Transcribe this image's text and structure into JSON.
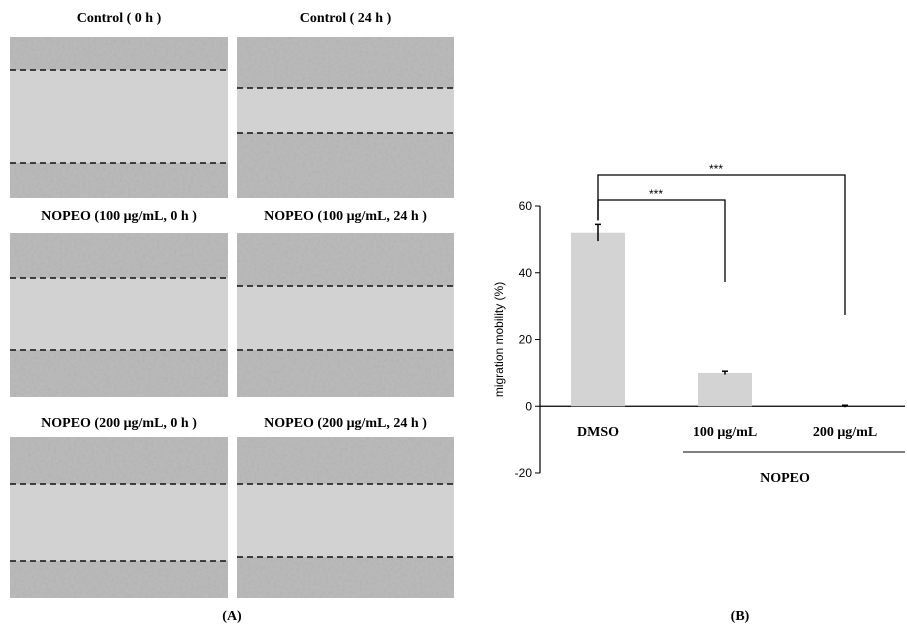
{
  "panel_a": {
    "label": "(A)",
    "images": [
      {
        "caption": "Control ( 0 h )"
      },
      {
        "caption": "Control ( 24 h )"
      },
      {
        "caption": "NOPEO (100 μg/mL, 0 h )"
      },
      {
        "caption": "NOPEO (100 μg/mL, 24 h )"
      },
      {
        "caption": "NOPEO (200 μg/mL, 0 h )"
      },
      {
        "caption": "NOPEO (200 μg/mL, 24 h )"
      }
    ]
  },
  "panel_b": {
    "label": "(B)"
  },
  "chart_data": {
    "type": "bar",
    "ylabel": "migration mobility (%)",
    "categories": [
      "DMSO",
      "100 μg/mL",
      "200 μg/mL"
    ],
    "values": [
      52,
      10,
      0
    ],
    "errors": [
      2.5,
      0.5,
      0.3
    ],
    "color": "#d3d3d3",
    "ylim": [
      -20,
      60
    ],
    "yticks": [
      -20,
      0,
      20,
      40,
      60
    ],
    "group": {
      "label": "NOPEO",
      "categories": [
        1,
        2
      ]
    },
    "annotations": [
      {
        "text": "***",
        "from": 0,
        "to": 1
      },
      {
        "text": "***",
        "from": 0,
        "to": 2
      }
    ]
  }
}
